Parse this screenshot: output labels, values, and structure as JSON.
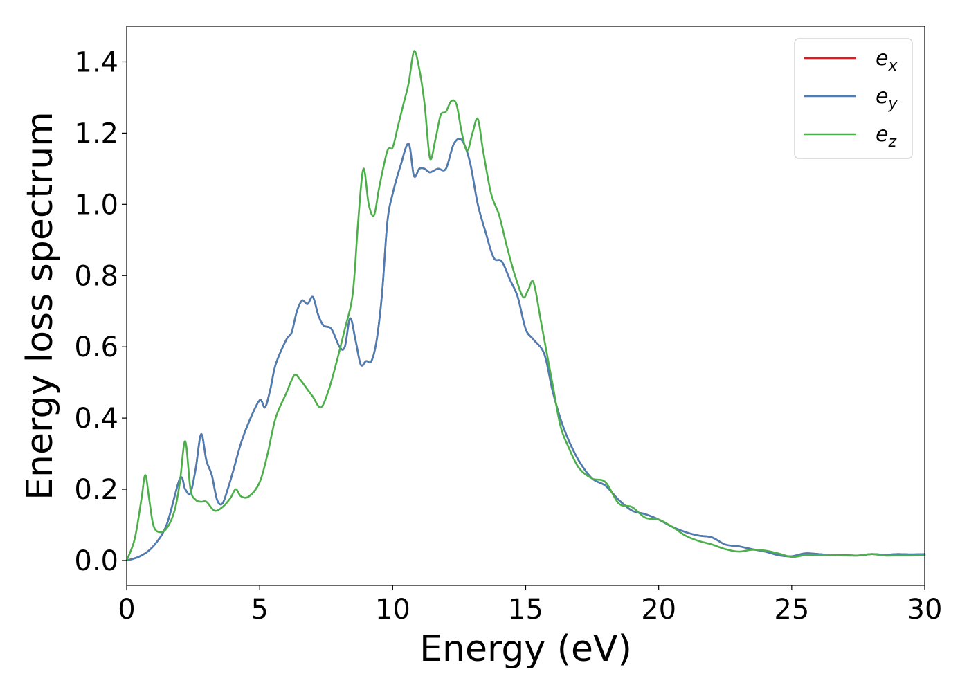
{
  "chart_data": {
    "type": "line",
    "title": "",
    "xlabel": "Energy (eV)",
    "ylabel": "Energy loss spectrum",
    "xlim": [
      0,
      30
    ],
    "ylim": [
      -0.07,
      1.5
    ],
    "x_ticks": [
      0,
      5,
      10,
      15,
      20,
      25,
      30
    ],
    "x_tick_labels": [
      "0",
      "5",
      "10",
      "15",
      "20",
      "25",
      "30"
    ],
    "y_ticks": [
      0.0,
      0.2,
      0.4,
      0.6,
      0.8,
      1.0,
      1.2,
      1.4
    ],
    "y_tick_labels": [
      "0.0",
      "0.2",
      "0.4",
      "0.6",
      "0.8",
      "1.0",
      "1.2",
      "1.4"
    ],
    "grid": false,
    "legend_position": "top-right",
    "series": [
      {
        "name": "e_x",
        "legend_base": "e",
        "legend_sub": "x",
        "color": "#e41a1c",
        "x": [
          0,
          0.5,
          1,
          1.5,
          2,
          2.2,
          2.4,
          2.6,
          2.8,
          3,
          3.2,
          3.4,
          3.6,
          3.8,
          4,
          4.3,
          4.6,
          5,
          5.2,
          5.4,
          5.6,
          6,
          6.2,
          6.4,
          6.6,
          6.8,
          7,
          7.2,
          7.4,
          7.7,
          8,
          8.2,
          8.4,
          8.6,
          8.8,
          9,
          9.2,
          9.4,
          9.6,
          9.8,
          10,
          10.3,
          10.6,
          10.8,
          11,
          11.2,
          11.4,
          11.7,
          12,
          12.3,
          12.6,
          12.9,
          13.2,
          13.5,
          13.8,
          14.1,
          14.4,
          14.7,
          15,
          15.3,
          15.7,
          16,
          16.3,
          16.6,
          17,
          17.5,
          18,
          18.5,
          19,
          19.5,
          20,
          20.5,
          21,
          21.5,
          22,
          22.5,
          23,
          23.5,
          24,
          24.5,
          25,
          25.5,
          26,
          26.5,
          27,
          27.5,
          28,
          28.5,
          29,
          29.5,
          30
        ],
        "y": [
          0.0,
          0.012,
          0.04,
          0.1,
          0.23,
          0.2,
          0.19,
          0.26,
          0.355,
          0.28,
          0.24,
          0.17,
          0.16,
          0.2,
          0.25,
          0.33,
          0.39,
          0.45,
          0.43,
          0.48,
          0.55,
          0.62,
          0.64,
          0.7,
          0.73,
          0.72,
          0.74,
          0.69,
          0.66,
          0.65,
          0.6,
          0.6,
          0.68,
          0.62,
          0.55,
          0.56,
          0.56,
          0.62,
          0.75,
          0.95,
          1.03,
          1.11,
          1.17,
          1.08,
          1.1,
          1.1,
          1.09,
          1.1,
          1.1,
          1.17,
          1.18,
          1.12,
          1.0,
          0.92,
          0.85,
          0.84,
          0.79,
          0.74,
          0.65,
          0.62,
          0.58,
          0.48,
          0.4,
          0.34,
          0.28,
          0.23,
          0.21,
          0.17,
          0.14,
          0.13,
          0.115,
          0.095,
          0.08,
          0.07,
          0.065,
          0.045,
          0.04,
          0.032,
          0.025,
          0.015,
          0.012,
          0.02,
          0.018,
          0.015,
          0.015,
          0.014,
          0.018,
          0.016,
          0.018,
          0.017,
          0.018
        ]
      },
      {
        "name": "e_y",
        "legend_base": "e",
        "legend_sub": "y",
        "color": "#4a7fb5",
        "x": [
          0,
          0.5,
          1,
          1.5,
          2,
          2.2,
          2.4,
          2.6,
          2.8,
          3,
          3.2,
          3.4,
          3.6,
          3.8,
          4,
          4.3,
          4.6,
          5,
          5.2,
          5.4,
          5.6,
          6,
          6.2,
          6.4,
          6.6,
          6.8,
          7,
          7.2,
          7.4,
          7.7,
          8,
          8.2,
          8.4,
          8.6,
          8.8,
          9,
          9.2,
          9.4,
          9.6,
          9.8,
          10,
          10.3,
          10.6,
          10.8,
          11,
          11.2,
          11.4,
          11.7,
          12,
          12.3,
          12.6,
          12.9,
          13.2,
          13.5,
          13.8,
          14.1,
          14.4,
          14.7,
          15,
          15.3,
          15.7,
          16,
          16.3,
          16.6,
          17,
          17.5,
          18,
          18.5,
          19,
          19.5,
          20,
          20.5,
          21,
          21.5,
          22,
          22.5,
          23,
          23.5,
          24,
          24.5,
          25,
          25.5,
          26,
          26.5,
          27,
          27.5,
          28,
          28.5,
          29,
          29.5,
          30
        ],
        "y": [
          0.0,
          0.012,
          0.04,
          0.1,
          0.23,
          0.2,
          0.19,
          0.26,
          0.355,
          0.28,
          0.24,
          0.17,
          0.16,
          0.2,
          0.25,
          0.33,
          0.39,
          0.45,
          0.43,
          0.48,
          0.55,
          0.62,
          0.64,
          0.7,
          0.73,
          0.72,
          0.74,
          0.69,
          0.66,
          0.65,
          0.6,
          0.6,
          0.68,
          0.62,
          0.55,
          0.56,
          0.56,
          0.62,
          0.75,
          0.95,
          1.03,
          1.11,
          1.17,
          1.08,
          1.1,
          1.1,
          1.09,
          1.1,
          1.1,
          1.17,
          1.18,
          1.12,
          1.0,
          0.92,
          0.85,
          0.84,
          0.79,
          0.74,
          0.65,
          0.62,
          0.58,
          0.48,
          0.4,
          0.34,
          0.28,
          0.23,
          0.21,
          0.17,
          0.14,
          0.13,
          0.115,
          0.095,
          0.08,
          0.07,
          0.065,
          0.045,
          0.04,
          0.032,
          0.025,
          0.015,
          0.012,
          0.02,
          0.018,
          0.015,
          0.015,
          0.014,
          0.018,
          0.016,
          0.018,
          0.017,
          0.018
        ]
      },
      {
        "name": "e_z",
        "legend_base": "e",
        "legend_sub": "z",
        "color": "#4daf4a",
        "x": [
          0,
          0.3,
          0.55,
          0.7,
          0.85,
          1,
          1.2,
          1.5,
          1.8,
          2,
          2.2,
          2.4,
          2.6,
          2.8,
          3,
          3.3,
          3.6,
          3.9,
          4.1,
          4.3,
          4.6,
          5,
          5.3,
          5.6,
          6,
          6.3,
          6.5,
          6.8,
          7,
          7.3,
          7.6,
          7.9,
          8.2,
          8.5,
          8.7,
          8.9,
          9.1,
          9.3,
          9.5,
          9.8,
          10,
          10.2,
          10.4,
          10.6,
          10.8,
          11,
          11.2,
          11.4,
          11.6,
          11.8,
          12,
          12.2,
          12.4,
          12.6,
          12.8,
          13,
          13.2,
          13.4,
          13.7,
          14,
          14.3,
          14.6,
          14.9,
          15.1,
          15.3,
          15.6,
          16,
          16.3,
          16.6,
          17,
          17.5,
          18,
          18.5,
          19,
          19.5,
          20,
          20.5,
          21,
          21.5,
          22,
          22.5,
          23,
          23.5,
          24,
          24.5,
          25,
          25.5,
          26,
          26.5,
          27,
          27.5,
          28,
          28.5,
          29,
          29.5,
          30
        ],
        "y": [
          0.0,
          0.06,
          0.17,
          0.24,
          0.17,
          0.1,
          0.08,
          0.09,
          0.14,
          0.22,
          0.335,
          0.2,
          0.17,
          0.165,
          0.165,
          0.14,
          0.15,
          0.175,
          0.2,
          0.18,
          0.18,
          0.22,
          0.3,
          0.4,
          0.47,
          0.52,
          0.51,
          0.48,
          0.46,
          0.43,
          0.48,
          0.56,
          0.65,
          0.75,
          0.95,
          1.1,
          1.0,
          0.97,
          1.05,
          1.15,
          1.16,
          1.22,
          1.28,
          1.34,
          1.43,
          1.38,
          1.28,
          1.13,
          1.18,
          1.25,
          1.26,
          1.29,
          1.28,
          1.2,
          1.15,
          1.2,
          1.24,
          1.15,
          1.03,
          0.97,
          0.88,
          0.8,
          0.74,
          0.76,
          0.78,
          0.66,
          0.5,
          0.38,
          0.32,
          0.26,
          0.23,
          0.22,
          0.16,
          0.15,
          0.12,
          0.115,
          0.095,
          0.07,
          0.055,
          0.045,
          0.032,
          0.025,
          0.03,
          0.028,
          0.02,
          0.01,
          0.015,
          0.015,
          0.015,
          0.014,
          0.014,
          0.018,
          0.014,
          0.014,
          0.014,
          0.015
        ]
      }
    ]
  }
}
